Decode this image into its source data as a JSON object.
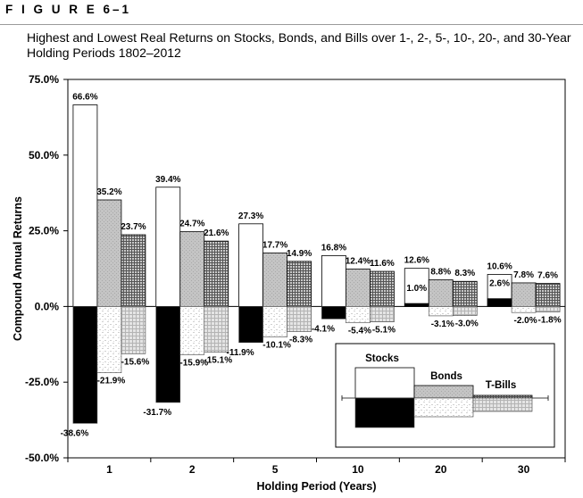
{
  "figure_label": "F I G U R E   6–1",
  "title_line1": "Highest and Lowest Real Returns on Stocks, Bonds, and Bills over 1-, 2-, 5-, 10-, 20-, and 30-Year",
  "title_line2": "Holding Periods 1802–2012",
  "chart_data": {
    "type": "bar",
    "xlabel": "Holding Period (Years)",
    "ylabel": "Compound Annual Returns",
    "ylim": [
      -50,
      75
    ],
    "y_ticks": [
      75,
      50,
      25,
      0,
      -25,
      -50
    ],
    "y_tick_labels": [
      "75.0%",
      "50.0%",
      "25.0%",
      "0.0%",
      "-25.0%",
      "-50.0%"
    ],
    "categories": [
      "1",
      "2",
      "5",
      "10",
      "20",
      "30"
    ],
    "series": [
      {
        "name": "Stocks",
        "high": [
          66.6,
          39.4,
          27.3,
          16.8,
          12.6,
          10.6
        ],
        "low": [
          -38.6,
          -31.7,
          -11.9,
          -4.1,
          1.0,
          2.6
        ],
        "high_labels": [
          "66.6%",
          "39.4%",
          "27.3%",
          "16.8%",
          "12.6%",
          "10.6%"
        ],
        "low_labels": [
          "-38.6%",
          "-31.7%",
          "-11.9%",
          "-4.1%",
          "1.0%",
          "2.6%"
        ]
      },
      {
        "name": "Bonds",
        "high": [
          35.2,
          24.7,
          17.7,
          12.4,
          8.8,
          7.8
        ],
        "low": [
          -21.9,
          -15.9,
          -10.1,
          -5.4,
          -3.1,
          -2.0
        ],
        "high_labels": [
          "35.2%",
          "24.7%",
          "17.7%",
          "12.4%",
          "8.8%",
          "7.8%"
        ],
        "low_labels": [
          "-21.9%",
          "-15.9%",
          "-10.1%",
          "-5.4%",
          "-3.1%",
          "-2.0%"
        ]
      },
      {
        "name": "T-Bills",
        "high": [
          23.7,
          21.6,
          14.9,
          11.6,
          8.3,
          7.6
        ],
        "low": [
          -15.6,
          -15.1,
          -8.3,
          -5.1,
          -3.0,
          -1.8
        ],
        "high_labels": [
          "23.7%",
          "21.6%",
          "14.9%",
          "11.6%",
          "8.3%",
          "7.6%"
        ],
        "low_labels": [
          "-15.6%",
          "-15.1%",
          "-8.3%",
          "-5.1%",
          "-3.0%",
          "-1.8%"
        ]
      }
    ],
    "legend": {
      "position": "bottom-right",
      "labels": [
        "Stocks",
        "Bonds",
        "T-Bills"
      ]
    },
    "grid": false
  }
}
